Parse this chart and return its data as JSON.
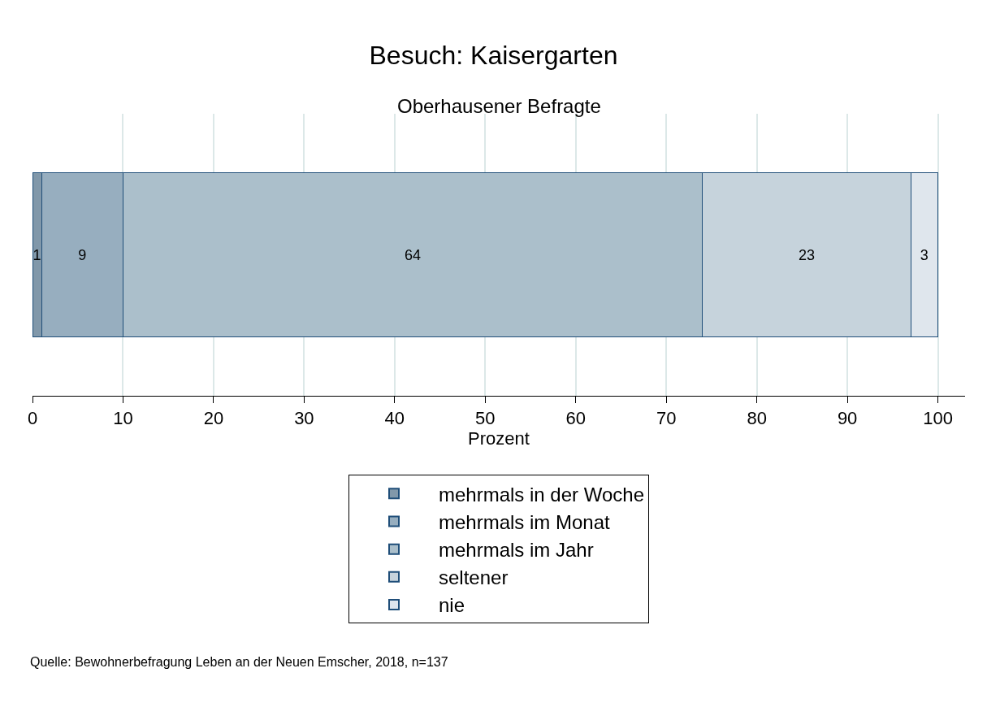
{
  "chart_data": {
    "type": "bar",
    "orientation": "horizontal",
    "stacked": true,
    "title": "Besuch: Kaisergarten",
    "subtitle": "Oberhausener Befragte",
    "xlabel": "Prozent",
    "categories": [
      null
    ],
    "series": [
      {
        "name": "mehrmals in der Woche",
        "color": "#8198aa",
        "values": [
          1
        ]
      },
      {
        "name": "mehrmals im Monat",
        "color": "#97aebf",
        "values": [
          9
        ]
      },
      {
        "name": "mehrmals im Jahr",
        "color": "#abbfcb",
        "values": [
          64
        ]
      },
      {
        "name": "seltener",
        "color": "#c6d3dc",
        "values": [
          23
        ]
      },
      {
        "name": "nie",
        "color": "#dfe6ed",
        "values": [
          3
        ]
      }
    ],
    "xlim": [
      0,
      103
    ],
    "xticks": [
      0,
      10,
      20,
      30,
      40,
      50,
      60,
      70,
      80,
      90,
      100
    ],
    "grid": "x",
    "legend": "bottom",
    "tick_labels": "x",
    "data_labels": true,
    "annotations": [
      "Quelle: Bewohnerbefragung Leben an der Neuen Emscher, 2018, n=137"
    ]
  }
}
